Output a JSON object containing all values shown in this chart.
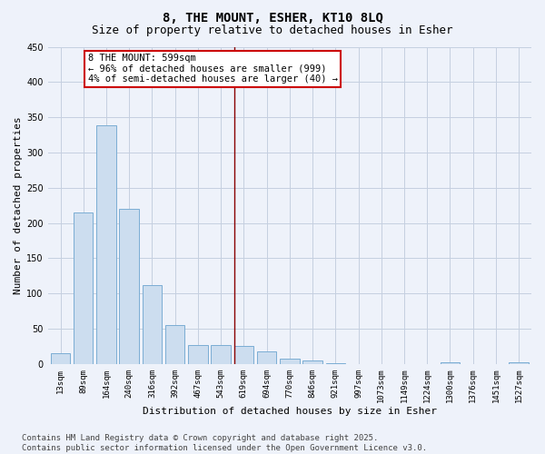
{
  "title": "8, THE MOUNT, ESHER, KT10 8LQ",
  "subtitle": "Size of property relative to detached houses in Esher",
  "xlabel": "Distribution of detached houses by size in Esher",
  "ylabel": "Number of detached properties",
  "bar_color": "#ccddef",
  "bar_edge_color": "#7aadd4",
  "background_color": "#eef2fa",
  "grid_color": "#c5cfe0",
  "categories": [
    "13sqm",
    "89sqm",
    "164sqm",
    "240sqm",
    "316sqm",
    "392sqm",
    "467sqm",
    "543sqm",
    "619sqm",
    "694sqm",
    "770sqm",
    "846sqm",
    "921sqm",
    "997sqm",
    "1073sqm",
    "1149sqm",
    "1224sqm",
    "1300sqm",
    "1376sqm",
    "1451sqm",
    "1527sqm"
  ],
  "values": [
    15,
    215,
    338,
    220,
    112,
    55,
    27,
    27,
    25,
    18,
    8,
    5,
    1,
    0,
    0,
    0,
    0,
    2,
    0,
    0,
    2
  ],
  "ylim": [
    0,
    450
  ],
  "yticks": [
    0,
    50,
    100,
    150,
    200,
    250,
    300,
    350,
    400,
    450
  ],
  "marker_bar_index": 8,
  "marker_line_color": "#880000",
  "annotation_text": "8 THE MOUNT: 599sqm\n← 96% of detached houses are smaller (999)\n4% of semi-detached houses are larger (40) →",
  "annotation_box_facecolor": "#ffffff",
  "annotation_box_edgecolor": "#cc0000",
  "footer_text": "Contains HM Land Registry data © Crown copyright and database right 2025.\nContains public sector information licensed under the Open Government Licence v3.0.",
  "title_fontsize": 10,
  "subtitle_fontsize": 9,
  "tick_fontsize": 6.5,
  "label_fontsize": 8,
  "annotation_fontsize": 7.5,
  "footer_fontsize": 6.5
}
